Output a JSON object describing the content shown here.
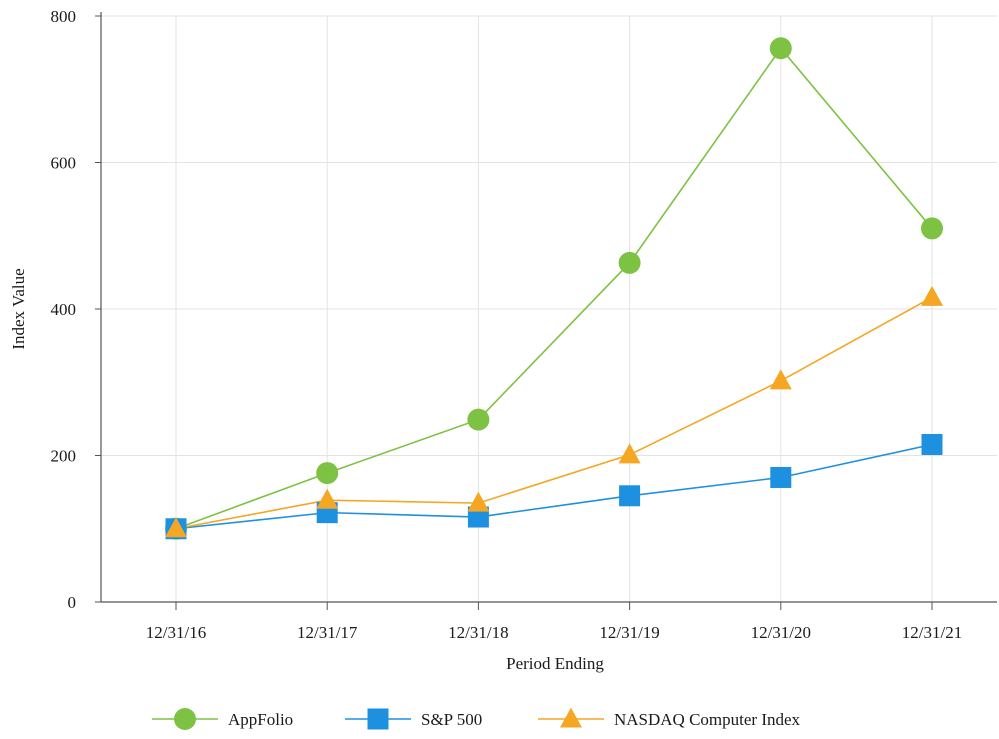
{
  "chart_data": {
    "type": "line",
    "categories": [
      "12/31/16",
      "12/31/17",
      "12/31/18",
      "12/31/19",
      "12/31/20",
      "12/31/21"
    ],
    "series": [
      {
        "name": "AppFolio",
        "values": [
          100,
          176,
          249,
          463,
          756,
          510
        ],
        "color": "#7dc243",
        "marker": "circle"
      },
      {
        "name": "S&P 500",
        "values": [
          100,
          122,
          116,
          145,
          170,
          215
        ],
        "color": "#1e90e0",
        "marker": "square"
      },
      {
        "name": "NASDAQ Computer Index",
        "values": [
          100,
          139,
          135,
          201,
          302,
          416
        ],
        "color": "#f5a623",
        "marker": "triangle"
      }
    ],
    "xlabel": "Period Ending",
    "ylabel": "Index Value",
    "ylim": [
      0,
      800
    ],
    "yticks": [
      "0",
      "200",
      "400",
      "600",
      "800"
    ],
    "grid": true,
    "legend_position": "bottom"
  }
}
